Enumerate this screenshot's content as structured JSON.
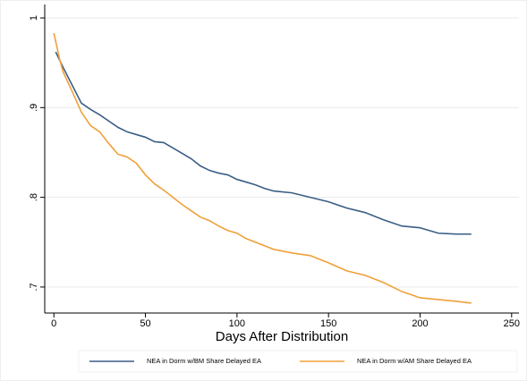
{
  "chart_data": {
    "type": "line",
    "x_label": "Days After Distribution",
    "xlim": [
      -5,
      254
    ],
    "xticks": [
      0,
      50,
      100,
      150,
      200,
      250
    ],
    "ylim": [
      0.671,
      1.015
    ],
    "yticks": [
      {
        "value": 0.7,
        "label": ".7"
      },
      {
        "value": 0.8,
        "label": ".8"
      },
      {
        "value": 0.9,
        "label": ".9"
      },
      1
    ],
    "grid": true,
    "legend": "bottom",
    "series": [
      {
        "name": "NEA in Dorm w/BM Share Delayed EA",
        "color": "#3b5e85",
        "x": [
          1,
          5,
          10,
          15,
          20,
          25,
          30,
          35,
          40,
          45,
          50,
          55,
          60,
          65,
          70,
          75,
          80,
          85,
          90,
          95,
          100,
          105,
          110,
          115,
          120,
          130,
          140,
          150,
          160,
          170,
          180,
          190,
          200,
          210,
          220,
          228
        ],
        "values": [
          0.962,
          0.945,
          0.925,
          0.905,
          0.898,
          0.892,
          0.885,
          0.878,
          0.873,
          0.87,
          0.867,
          0.862,
          0.861,
          0.855,
          0.849,
          0.843,
          0.835,
          0.83,
          0.827,
          0.825,
          0.82,
          0.817,
          0.814,
          0.81,
          0.807,
          0.805,
          0.8,
          0.795,
          0.788,
          0.783,
          0.775,
          0.768,
          0.766,
          0.76,
          0.759,
          0.759
        ]
      },
      {
        "name": "NEA in Dorm w/AM Share Delayed EA",
        "color": "#f0a03a",
        "x": [
          0,
          3,
          5,
          10,
          15,
          20,
          25,
          30,
          35,
          40,
          45,
          50,
          55,
          60,
          65,
          70,
          75,
          80,
          85,
          90,
          95,
          100,
          105,
          110,
          115,
          120,
          130,
          140,
          150,
          160,
          170,
          180,
          190,
          200,
          210,
          220,
          228
        ],
        "values": [
          0.983,
          0.955,
          0.94,
          0.918,
          0.895,
          0.88,
          0.873,
          0.86,
          0.848,
          0.845,
          0.838,
          0.825,
          0.815,
          0.808,
          0.8,
          0.792,
          0.785,
          0.778,
          0.774,
          0.768,
          0.763,
          0.76,
          0.754,
          0.75,
          0.746,
          0.742,
          0.738,
          0.735,
          0.727,
          0.718,
          0.713,
          0.705,
          0.695,
          0.688,
          0.686,
          0.684,
          0.682
        ]
      }
    ]
  }
}
